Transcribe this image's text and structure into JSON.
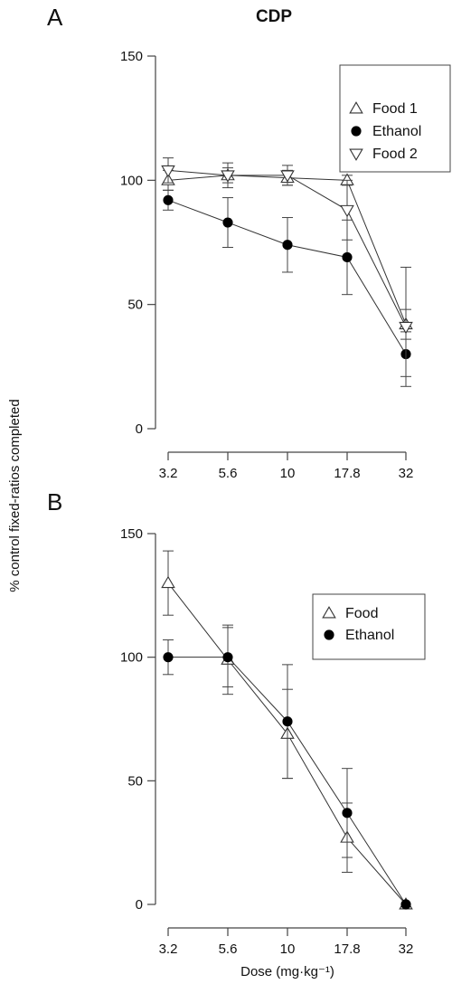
{
  "title": "CDP",
  "ylabel": "% control fixed-ratios completed",
  "chart_data": [
    {
      "panel": "A",
      "type": "line",
      "categories": [
        "3.2",
        "5.6",
        "10",
        "17.8",
        "32"
      ],
      "ylim": [
        0,
        150
      ],
      "yticks": [
        0,
        50,
        100,
        150
      ],
      "xlabel": "",
      "legend_position": "top-right",
      "series": [
        {
          "name": "Food 1",
          "marker": "triangle-up-open",
          "values": [
            100,
            102,
            101,
            100,
            42
          ],
          "errors": [
            4,
            3,
            3,
            2,
            6
          ]
        },
        {
          "name": "Ethanol",
          "marker": "circle-filled",
          "values": [
            92,
            83,
            74,
            69,
            30
          ],
          "errors": [
            4,
            10,
            11,
            15,
            9
          ]
        },
        {
          "name": "Food 2",
          "marker": "triangle-down-open",
          "values": [
            104,
            102,
            102,
            88,
            41
          ],
          "errors": [
            5,
            5,
            4,
            12,
            24
          ]
        }
      ]
    },
    {
      "panel": "B",
      "type": "line",
      "categories": [
        "3.2",
        "5.6",
        "10",
        "17.8",
        "32"
      ],
      "ylim": [
        0,
        150
      ],
      "yticks": [
        0,
        50,
        100,
        150
      ],
      "xlabel": "Dose (mg·kg⁻¹)",
      "legend_position": "top-right",
      "series": [
        {
          "name": "Food",
          "marker": "triangle-up-open",
          "values": [
            130,
            99,
            69,
            27,
            0
          ],
          "errors": [
            13,
            14,
            18,
            14,
            0
          ]
        },
        {
          "name": "Ethanol",
          "marker": "circle-filled",
          "values": [
            100,
            100,
            74,
            37,
            0
          ],
          "errors": [
            7,
            12,
            23,
            18,
            0
          ]
        }
      ]
    }
  ]
}
